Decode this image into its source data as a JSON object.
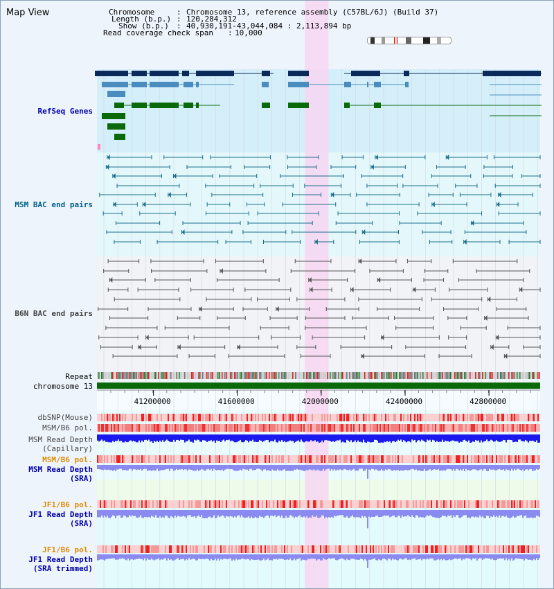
{
  "title": "Map View",
  "header": {
    "chromosome_key": "Chromosome",
    "chromosome_val": "Chromosome 13, reference assembly (C57BL/6J) (Build 37)",
    "length_key": "Length (b.p.)",
    "length_val": "120,284,312",
    "show_key": "Show (b.p.)",
    "show_val": "40,930,191-43,044,084 : 2,113,894 bp",
    "coverage_key": "Read coverage check span",
    "coverage_val": "10,000",
    "sep": ":"
  },
  "view": {
    "start": 40930191,
    "end": 43044084,
    "highlight": [
      41922000,
      42035000
    ]
  },
  "axis": {
    "ticks": [
      41200000,
      41600000,
      42000000,
      42400000,
      42800000
    ]
  },
  "tracks": [
    {
      "id": "refseq",
      "label": "RefSeq Genes",
      "color": "#0000aa"
    },
    {
      "id": "msm_bac",
      "label": "MSM BAC end pairs",
      "color": "#00608a"
    },
    {
      "id": "b6n_bac",
      "label": "B6N BAC end pairs",
      "color": "#444444"
    },
    {
      "id": "repeat",
      "label": "Repeat",
      "color": "#000000"
    },
    {
      "id": "chrom",
      "label": "chromosome 13",
      "color": "#000000"
    },
    {
      "id": "dbsnp",
      "label": "dbSNP(Mouse)",
      "color": "#444444"
    },
    {
      "id": "msm_b6_pol",
      "label": "MSM/B6 pol.",
      "color": "#444444"
    },
    {
      "id": "msm_rd_cap",
      "label": "MSM Read Depth",
      "color": "#444444"
    },
    {
      "id": "msm_rd_cap2",
      "label": "(Capillary)",
      "color": "#444444"
    },
    {
      "id": "msm_b6_pol2",
      "label": "MSM/B6 pol.",
      "color": "#e08a00"
    },
    {
      "id": "msm_rd_sra",
      "label": "MSM Read Depth",
      "color": "#0000aa"
    },
    {
      "id": "msm_rd_sra2",
      "label": "(SRA)",
      "color": "#0000aa"
    },
    {
      "id": "jf1_b6_pol",
      "label": "JF1/B6 pol.",
      "color": "#e08a00"
    },
    {
      "id": "jf1_rd_sra",
      "label": "JF1 Read Depth",
      "color": "#0000aa"
    },
    {
      "id": "jf1_rd_sra2",
      "label": "(SRA)",
      "color": "#0000aa"
    },
    {
      "id": "jf1_b6_pol2",
      "label": "JF1/B6 pol.",
      "color": "#e08a00"
    },
    {
      "id": "jf1_rd_trim",
      "label": "JF1 Read Depth",
      "color": "#0000aa"
    },
    {
      "id": "jf1_rd_trim2",
      "label": "(SRA trimmed)",
      "color": "#0000aa"
    }
  ],
  "colors": {
    "gene_dark": "#0a2a5c",
    "gene_mid": "#4a8cc0",
    "gene_green": "#0a6a0a",
    "chrom_bar": "#0a6a0a",
    "highlight": "#f7d6f2",
    "msm_line": "#1b6e8c",
    "b6n_line": "#555555",
    "depth_blue": "#1a1aee",
    "depth_light": "#8a8af0"
  }
}
